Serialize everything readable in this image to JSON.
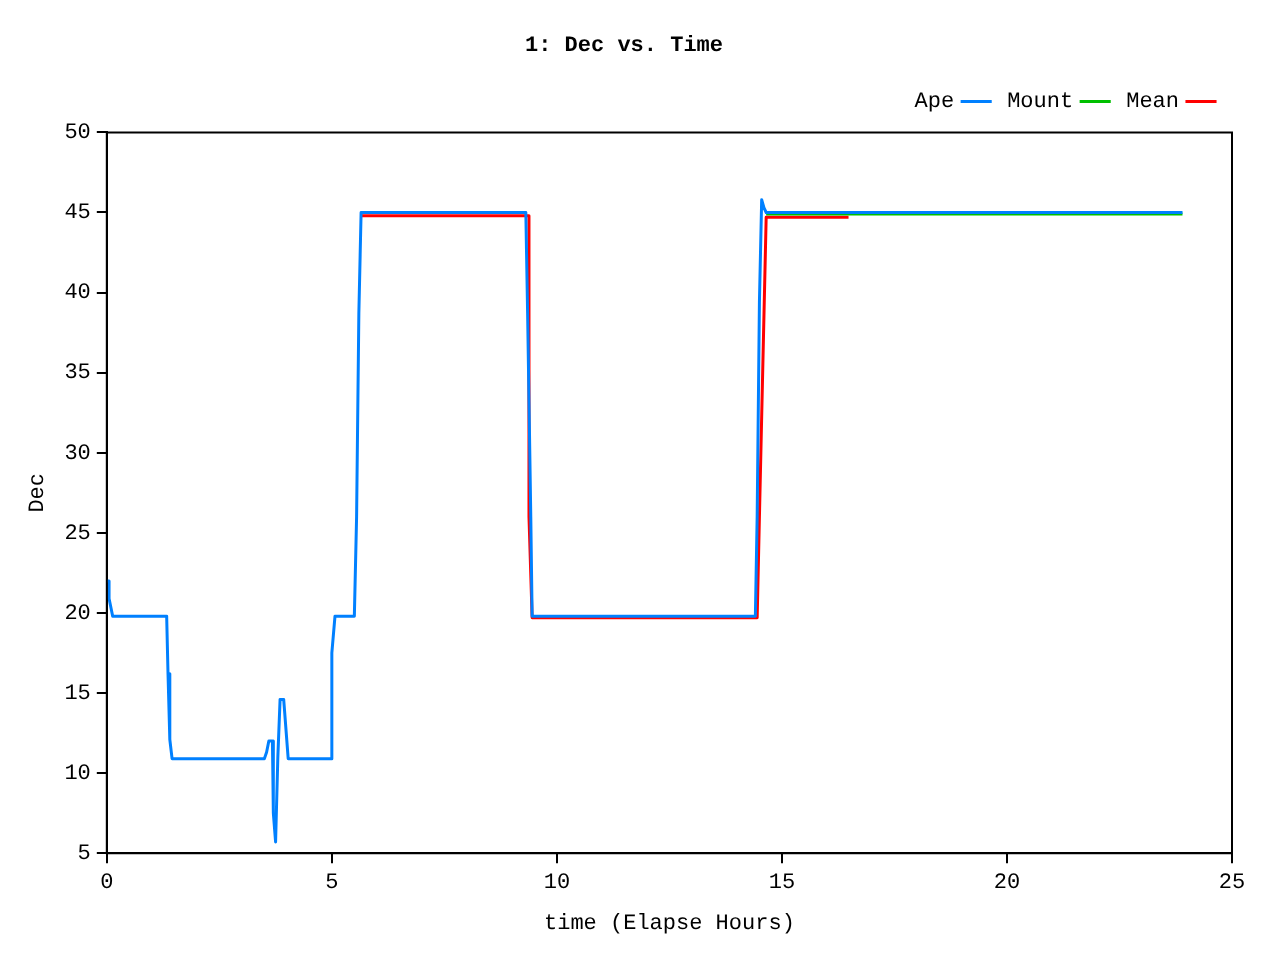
{
  "chart_data": {
    "type": "line",
    "title": "1: Dec vs. Time",
    "xlabel": "time (Elapse Hours)",
    "ylabel": "Dec",
    "xlim": [
      0,
      25
    ],
    "xticks": [
      0,
      5,
      10,
      15,
      20,
      25
    ],
    "ylim": [
      5,
      50
    ],
    "yticks": [
      5,
      10,
      15,
      20,
      25,
      30,
      35,
      40,
      45,
      50
    ],
    "grid": false,
    "legend": "top right",
    "marker": "none",
    "line_style": "solid",
    "series": [
      {
        "name": "Mean",
        "color": "#ff0000",
        "x": [
          5.65,
          9.38,
          9.38,
          9.45,
          14.45,
          14.5,
          14.65,
          16.48
        ],
        "values": [
          44.8,
          44.8,
          26,
          19.7,
          19.7,
          26,
          44.7,
          44.7
        ]
      },
      {
        "name": "Mount",
        "color": "#00c000",
        "x": [
          14.65,
          23.9
        ],
        "values": [
          44.9,
          44.9
        ]
      },
      {
        "name": "Ape",
        "color": "#0080ff",
        "x": [
          0,
          0.05,
          0.05,
          0.13,
          1.33,
          1.36,
          1.4,
          1.45,
          3.5,
          3.55,
          3.6,
          3.68,
          3.7,
          3.75,
          3.8,
          3.85,
          3.93,
          4.03,
          4.98,
          5.0,
          5.07,
          5.5,
          5.55,
          5.6,
          5.65,
          9.31,
          9.35,
          9.42,
          9.45,
          14.41,
          14.45,
          14.5,
          14.55,
          14.6,
          14.65,
          23.9
        ],
        "values": [
          22,
          22,
          20.9,
          19.8,
          19.8,
          16.2,
          12.1,
          10.9,
          10.9,
          11.3,
          12,
          12,
          7.5,
          5.7,
          11,
          14.6,
          14.6,
          10.9,
          10.9,
          17.5,
          19.8,
          19.8,
          26,
          38.7,
          45,
          45,
          38.7,
          26,
          19.8,
          19.8,
          26,
          39.4,
          45.8,
          45.3,
          45,
          45
        ]
      }
    ]
  }
}
